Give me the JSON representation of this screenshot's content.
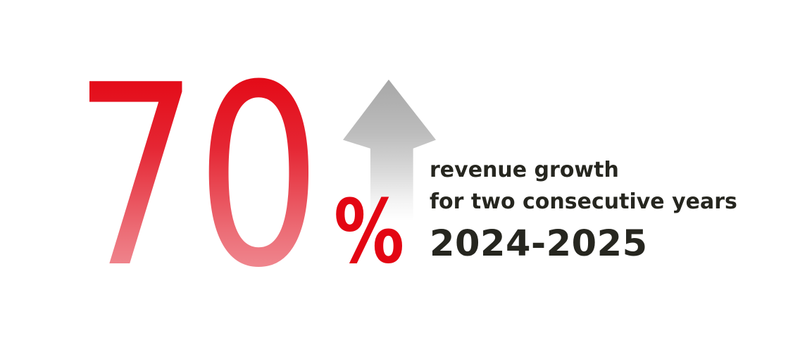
{
  "page": {
    "background_color": "#ffffff",
    "type": "stat-infographic"
  },
  "stat": {
    "value": "70",
    "unit": "%",
    "caption_line1": "revenue growth",
    "caption_line2": "for two consecutive years",
    "period": "2024-2025"
  },
  "icons": {
    "arrow_up": "up-arrow-icon"
  },
  "colors": {
    "number_gradient_top": "#e30613",
    "number_gradient_bottom": "#f2989f",
    "percent_red": "#e30613",
    "arrow_gray_top": "#a7a7a7",
    "arrow_fade_bottom": "#ffffff",
    "text_dark": "#26261f"
  },
  "chart_data": {
    "type": "stat",
    "title": "revenue growth for two consecutive years",
    "value": 70,
    "unit": "%",
    "period": "2024-2025",
    "trend_direction": "up",
    "annotations": [
      "70%",
      "revenue growth",
      "for two consecutive years",
      "2024-2025"
    ]
  }
}
